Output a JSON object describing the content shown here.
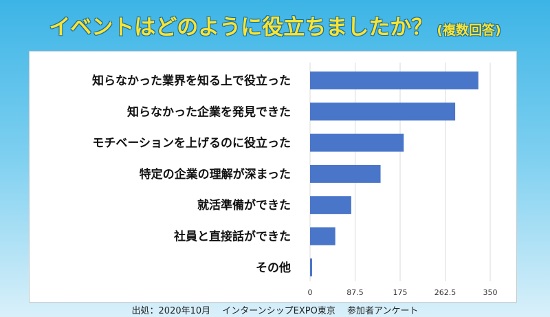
{
  "header": {
    "title": "イベントはどのように役立ちましたか？",
    "subtitle": "(複数回答)"
  },
  "footer": {
    "source": "出処：2020年10月　 インターンシップEXPO東京　 参加者アンケート"
  },
  "colors": {
    "bar": "#4a76c9",
    "title": "#fbe431"
  },
  "chart_data": {
    "type": "bar",
    "orientation": "horizontal",
    "title": "",
    "xlabel": "",
    "ylabel": "",
    "categories": [
      "知らなかった業界を知る上で役立った",
      "知らなかった企業を発見できた",
      "モチベーションを上げるのに役立った",
      "特定の企業の理解が深まった",
      "就活準備ができた",
      "社員と直接話ができた",
      "その他"
    ],
    "values": [
      327,
      282,
      182,
      137,
      80,
      49,
      4
    ],
    "xlim": [
      0,
      350
    ],
    "ticks": [
      "0",
      "87.5",
      "175",
      "262.5",
      "350"
    ],
    "grid": true,
    "legend": "none"
  }
}
